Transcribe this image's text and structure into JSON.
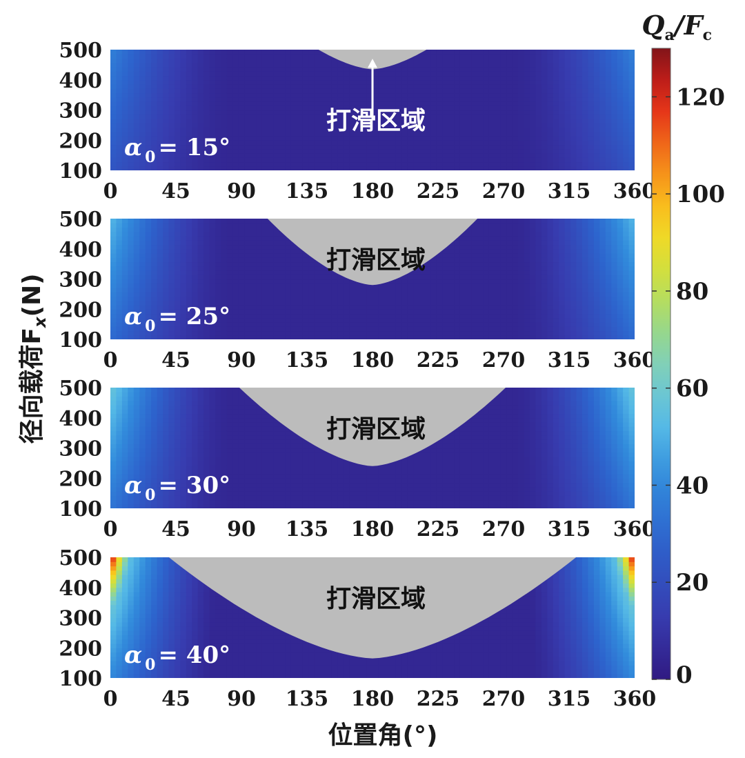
{
  "chart_data": {
    "type": "heatmap",
    "xlabel": "位置角(°)",
    "ylabel": "径向载荷F",
    "ylabel_sub": "x",
    "ylabel_unit": "(N)",
    "colorbar": {
      "label_main": "Q",
      "label_main_sub": "a",
      "label_sep": "/F",
      "label_sep_sub": "c",
      "range": [
        0,
        130
      ],
      "ticks": [
        "0",
        "20",
        "40",
        "60",
        "80",
        "100",
        "120"
      ],
      "colormap": "jet"
    },
    "x_ticks": [
      "0",
      "45",
      "90",
      "135",
      "180",
      "225",
      "270",
      "315",
      "360"
    ],
    "y_ticks": [
      "100",
      "200",
      "300",
      "400",
      "500"
    ],
    "x_range": [
      0,
      360
    ],
    "y_range": [
      100,
      500
    ],
    "slip_region_color": "#bcbcbc",
    "panels": [
      {
        "alpha_symbol": "α",
        "alpha_sub": "0",
        "alpha_value": "= 15°",
        "region_label": "打滑区域",
        "region_label_color": "#ffffff",
        "has_arrow": true,
        "slip_boundary": {
          "min_load": 395,
          "width_at_500": 80,
          "width_at_min": 0
        },
        "max_value_at_edge": 38
      },
      {
        "alpha_symbol": "α",
        "alpha_sub": "0",
        "alpha_value": "= 25°",
        "region_label": "打滑区域",
        "region_label_color": "#111111",
        "has_arrow": false,
        "slip_boundary": {
          "min_load": 240,
          "width_at_500": 140,
          "width_at_min": 0
        },
        "max_value_at_edge": 52
      },
      {
        "alpha_symbol": "α",
        "alpha_sub": "0",
        "alpha_value": "= 30°",
        "region_label": "打滑区域",
        "region_label_color": "#111111",
        "has_arrow": false,
        "slip_boundary": {
          "min_load": 200,
          "width_at_500": 180,
          "width_at_min": 0
        },
        "max_value_at_edge": 58
      },
      {
        "alpha_symbol": "α",
        "alpha_sub": "0",
        "alpha_value": "= 40°",
        "region_label": "打滑区域",
        "region_label_color": "#111111",
        "has_arrow": false,
        "slip_boundary": {
          "min_load": 125,
          "width_at_500": 280,
          "width_at_min": 0
        },
        "max_value_at_edge": 130
      }
    ]
  }
}
